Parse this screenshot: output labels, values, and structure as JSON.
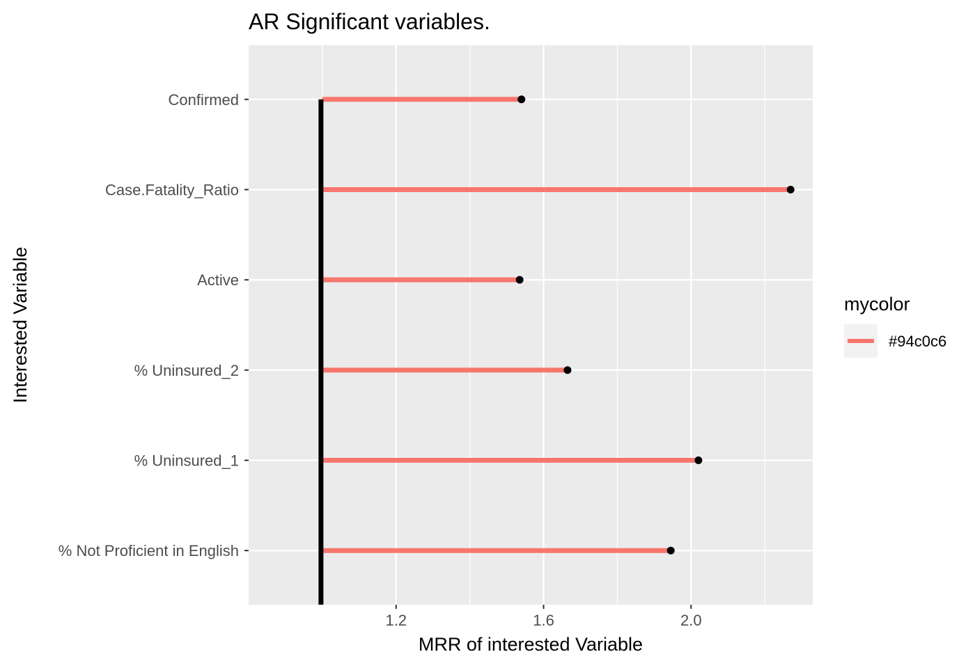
{
  "chart_data": {
    "type": "lollipop",
    "title": "AR Significant variables.",
    "xlabel": "MRR of interested Variable",
    "ylabel": "Interested Variable",
    "categories": [
      "Confirmed",
      "Case.Fatality_Ratio",
      "Active",
      "% Uninsured_2",
      "% Uninsured_1",
      "% Not Proficient in English"
    ],
    "values": [
      1.54,
      2.27,
      1.535,
      1.665,
      2.02,
      1.945
    ],
    "baseline": 1.0,
    "xlim": [
      0.8,
      2.33
    ],
    "x_ticks": [
      1.2,
      1.6,
      2.0
    ],
    "x_tick_labels": [
      "1.2",
      "1.6",
      "2.0"
    ],
    "grid": true,
    "legend": {
      "title": "mycolor",
      "entries": [
        {
          "label": "#94c0c6",
          "color": "#f8766d"
        }
      ],
      "placement": "right"
    },
    "colors": {
      "segment": "#f8766d",
      "point": "#000000",
      "baseline": "#000000",
      "panel": "#ebebeb",
      "grid": "#ffffff"
    }
  }
}
